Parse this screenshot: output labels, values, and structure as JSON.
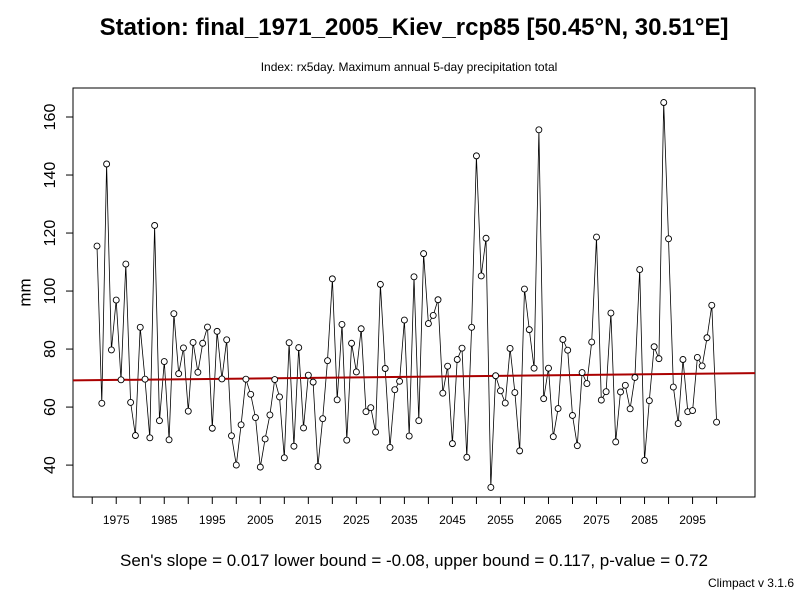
{
  "header": {
    "title": "Station: final_1971_2005_Kiev_rcp85 [50.45°N, 30.51°E]",
    "subtitle": "Index: rx5day. Maximum annual 5-day precipitation total"
  },
  "footer": {
    "stats": "Sen's slope = 0.017   lower bound = -0.08,   upper bound = 0.117,   p-value = 0.72",
    "version": "Climpact v 3.1.6"
  },
  "chart_data": {
    "type": "line",
    "ylabel": "mm",
    "xlabel": "",
    "xlim": [
      1966,
      2108
    ],
    "ylim": [
      29,
      170
    ],
    "x_ticks": [
      1975,
      1985,
      1995,
      2005,
      2015,
      2025,
      2035,
      2045,
      2055,
      2065,
      2075,
      2085,
      2095
    ],
    "y_ticks": [
      40,
      60,
      80,
      100,
      120,
      140,
      160
    ],
    "grid": false,
    "legend": "none",
    "marker": "open-circle",
    "line_color": "#000000",
    "trend_color": "#aa0000",
    "trend_line": {
      "x": [
        1966,
        2108
      ],
      "y": [
        69.2,
        71.7
      ]
    },
    "x": [
      1971,
      1972,
      1973,
      1974,
      1975,
      1976,
      1977,
      1978,
      1979,
      1980,
      1981,
      1982,
      1983,
      1984,
      1985,
      1986,
      1987,
      1988,
      1989,
      1990,
      1991,
      1992,
      1993,
      1994,
      1995,
      1996,
      1997,
      1998,
      1999,
      2000,
      2001,
      2002,
      2003,
      2004,
      2005,
      2006,
      2007,
      2008,
      2009,
      2010,
      2011,
      2012,
      2013,
      2014,
      2015,
      2016,
      2017,
      2018,
      2019,
      2020,
      2021,
      2022,
      2023,
      2024,
      2025,
      2026,
      2027,
      2028,
      2029,
      2030,
      2031,
      2032,
      2033,
      2034,
      2035,
      2036,
      2037,
      2038,
      2039,
      2040,
      2041,
      2042,
      2043,
      2044,
      2045,
      2046,
      2047,
      2048,
      2049,
      2050,
      2051,
      2052,
      2053,
      2054,
      2055,
      2056,
      2057,
      2058,
      2059,
      2060,
      2061,
      2062,
      2063,
      2064,
      2065,
      2066,
      2067,
      2068,
      2069,
      2070,
      2071,
      2072,
      2073,
      2074,
      2075,
      2076,
      2077,
      2078,
      2079,
      2080,
      2081,
      2082,
      2083,
      2084,
      2085,
      2086,
      2087,
      2088,
      2089,
      2090,
      2091,
      2092,
      2093,
      2094,
      2095,
      2096,
      2097,
      2098,
      2099,
      2100
    ],
    "series": [
      {
        "values": [
          115.5,
          61.3,
          143.8,
          79.7,
          96.9,
          69.4,
          109.3,
          61.6,
          50.2,
          87.5,
          69.6,
          49.4,
          122.6,
          55.3,
          75.7,
          48.7,
          92.2,
          71.5,
          80.4,
          58.6,
          82.3,
          72.0,
          82.0,
          87.6,
          52.7,
          86.1,
          69.7,
          83.2,
          50.1,
          40.0,
          53.9,
          69.6,
          64.4,
          56.4,
          39.3,
          49.0,
          57.3,
          69.5,
          63.5,
          42.5,
          82.2,
          46.5,
          80.5,
          52.8,
          71.0,
          68.6,
          39.5,
          56.0,
          76.0,
          104.2,
          62.5,
          88.5,
          48.6,
          82.0,
          72.1,
          87.0,
          58.4,
          59.8,
          51.4,
          102.3,
          73.3,
          46.1,
          66.0,
          68.9,
          90.0,
          50.0,
          104.9,
          55.3,
          112.9,
          88.8,
          91.6,
          97.0,
          64.8,
          74.1,
          47.4,
          76.4,
          80.3,
          42.7,
          87.5,
          146.6,
          105.2,
          118.2,
          32.3,
          70.8,
          65.6,
          61.4,
          80.2,
          65.0,
          44.9,
          100.7,
          86.7,
          73.4,
          155.6,
          62.9,
          73.4,
          49.8,
          59.5,
          83.3,
          79.6,
          57.1,
          46.7,
          71.9,
          68.1,
          82.4,
          118.6,
          62.4,
          65.3,
          92.4,
          48.0,
          65.2,
          67.5,
          59.4,
          70.2,
          107.4,
          41.6,
          62.2,
          80.8,
          76.7,
          165.0,
          118.0,
          66.9,
          54.3,
          76.4,
          58.4,
          58.8,
          77.1,
          74.2,
          83.9,
          95.1,
          54.8
        ]
      }
    ]
  }
}
